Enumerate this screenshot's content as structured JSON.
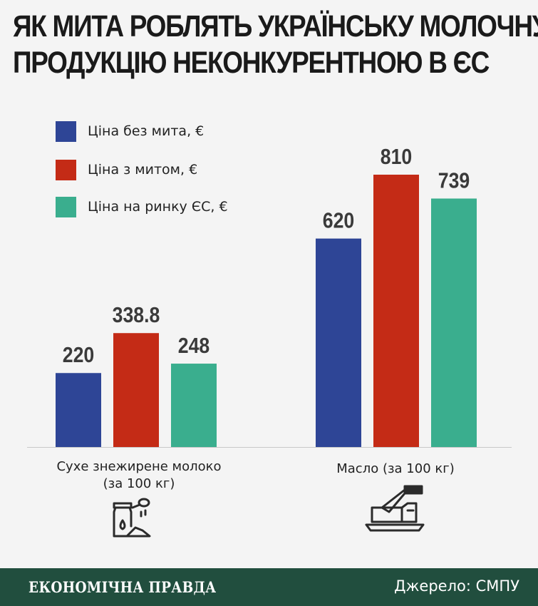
{
  "title": "ЯК МИТА РОБЛЯТЬ УКРАЇНСЬКУ МОЛОЧНУ ПРОДУКЦІЮ НЕКОНКУРЕНТНОЮ В ЄС",
  "title_line1": "ЯК МИТА РОБЛЯТЬ УКРАЇНСЬКУ МОЛОЧНУ",
  "title_line2": "ПРОДУКЦІЮ НЕКОНКУРЕНТНОЮ В ЄС",
  "colors": {
    "series1": "#2e4596",
    "series2": "#c42b16",
    "series3": "#3aae8e",
    "footer": "#214e3e",
    "icon": "#2b2b2b"
  },
  "chart_data": {
    "type": "bar",
    "categories": [
      "Сухе знежирене молоко\n(за 100 кг)",
      "Масло (за 100 кг)"
    ],
    "series": [
      {
        "name": "Ціна без мита, €",
        "values": [
          220,
          620
        ],
        "labels": [
          "220",
          "620"
        ]
      },
      {
        "name": "Ціна з митом, €",
        "values": [
          338.8,
          810
        ],
        "labels": [
          "338.8",
          "810"
        ]
      },
      {
        "name": "Ціна на ринку ЄС, €",
        "values": [
          248,
          739
        ],
        "labels": [
          "248",
          "739"
        ]
      }
    ],
    "ylim": [
      0,
      900
    ],
    "grid": false,
    "legend_position": "top-left"
  },
  "icons": [
    "milk-powder-icon",
    "butter-icon"
  ],
  "footer": {
    "brand": "ЕКОНОМІЧНА ПРАВДА",
    "source": "Джерело: СМПУ"
  }
}
